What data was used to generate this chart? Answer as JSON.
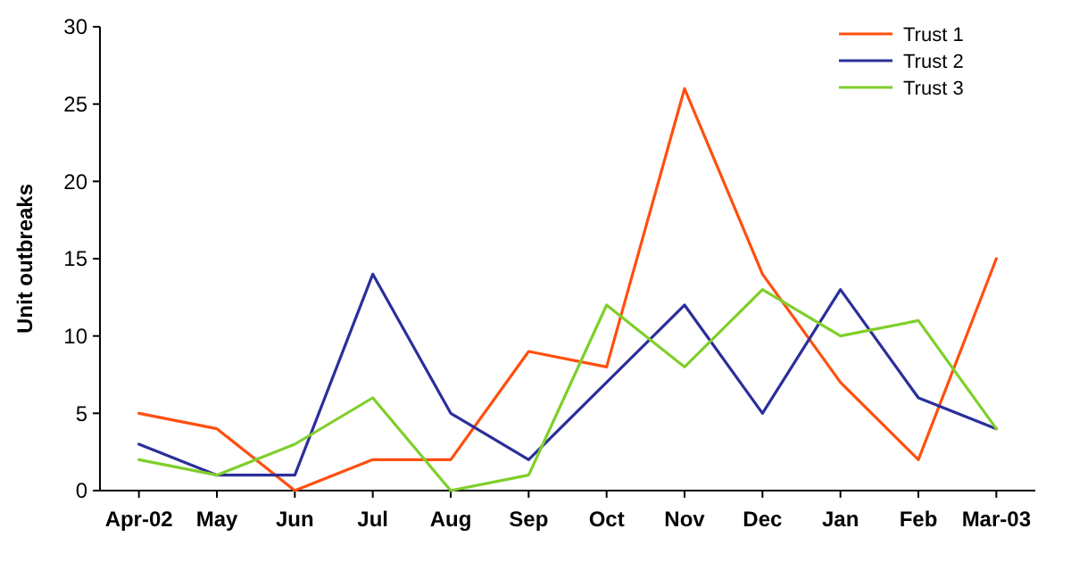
{
  "chart_data": {
    "type": "line",
    "ylabel": "Unit outbreaks",
    "categories": [
      "Apr-02",
      "May",
      "Jun",
      "Jul",
      "Aug",
      "Sep",
      "Oct",
      "Nov",
      "Dec",
      "Jan",
      "Feb",
      "Mar-03"
    ],
    "series": [
      {
        "name": "Trust 1",
        "color": "#ff4f0f",
        "values": [
          5,
          4,
          0,
          2,
          2,
          9,
          8,
          26,
          14,
          7,
          2,
          15
        ]
      },
      {
        "name": "Trust 2",
        "color": "#2b2f9a",
        "values": [
          3,
          1,
          1,
          14,
          5,
          2,
          7,
          12,
          5,
          13,
          6,
          4
        ]
      },
      {
        "name": "Trust 3",
        "color": "#7fcf2a",
        "values": [
          2,
          1,
          3,
          6,
          0,
          1,
          12,
          8,
          13,
          10,
          11,
          4
        ]
      }
    ],
    "ylim": [
      0,
      30
    ],
    "yticks": [
      0,
      5,
      10,
      15,
      20,
      25,
      30
    ],
    "legend": "top right",
    "grid": false,
    "marker": "none",
    "line_style": "solid"
  }
}
